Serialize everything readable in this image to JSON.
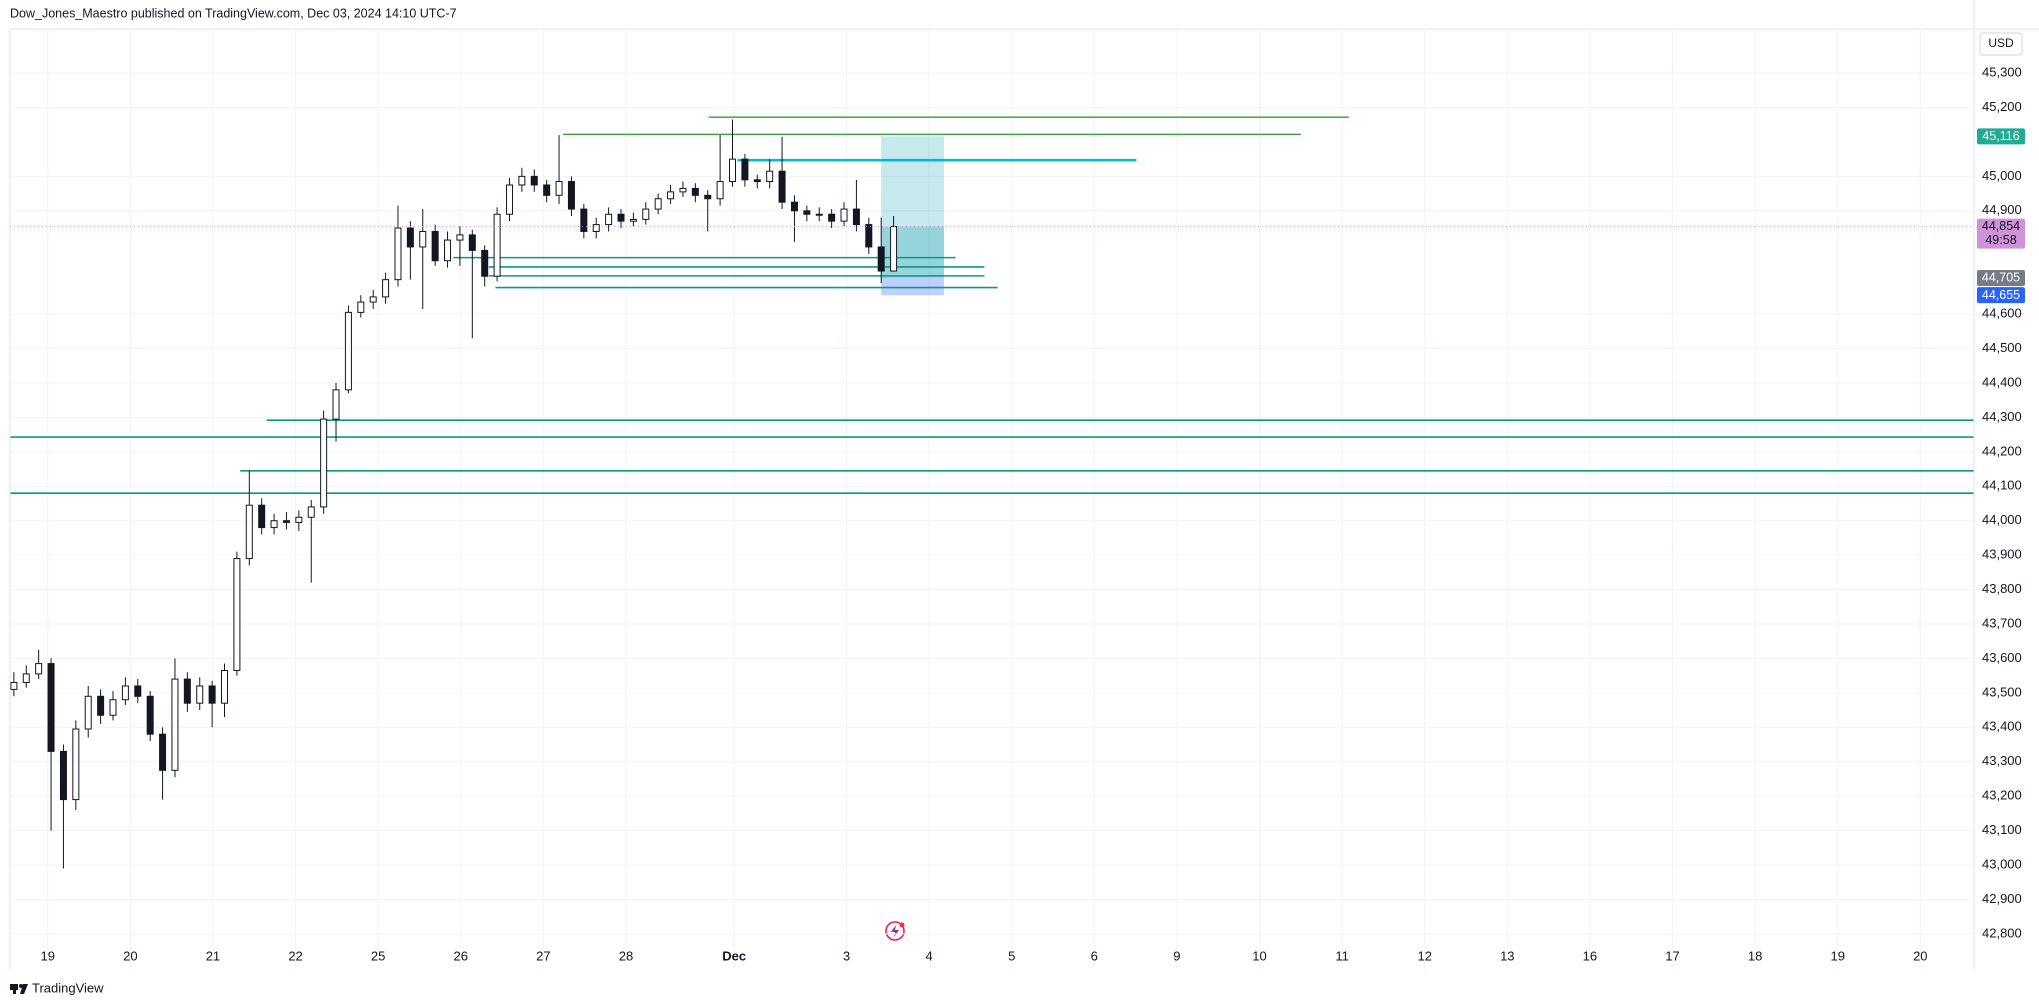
{
  "chart_data": {
    "type": "candlestick",
    "header": "Dow_Jones_Maestro published on TradingView.com, Dec 03, 2024 14:10 UTC-7",
    "currency": "USD",
    "brand": "TradingView",
    "grid": true,
    "up_color": "#ffffff",
    "down_color": "#131722",
    "x": [
      -0.41,
      -0.26,
      -0.11,
      0.04,
      0.19,
      0.34,
      0.49,
      0.64,
      0.79,
      0.94,
      1.09,
      1.24,
      1.39,
      1.54,
      1.69,
      1.84,
      1.99,
      2.14,
      2.29,
      2.44,
      2.59,
      2.74,
      2.89,
      3.04,
      3.19,
      3.34,
      3.49,
      3.64,
      3.79,
      3.94,
      4.09,
      4.24,
      4.39,
      4.54,
      4.69,
      4.84,
      4.99,
      5.14,
      5.29,
      5.44,
      5.59,
      5.74,
      5.89,
      6.04,
      6.19,
      6.34,
      6.49,
      6.64,
      6.79,
      6.94,
      7.09,
      7.24,
      7.39,
      7.54,
      7.69,
      7.84,
      7.99,
      8.14,
      8.29,
      8.44,
      8.59,
      8.74,
      8.89,
      9.04,
      9.19,
      9.34,
      9.49,
      9.64,
      9.79,
      9.94,
      10.09,
      10.24
    ],
    "open": [
      43510,
      43530,
      43555,
      43585,
      43330,
      43190,
      43395,
      43490,
      43435,
      43480,
      43520,
      43490,
      43380,
      43275,
      43540,
      43470,
      43520,
      43470,
      43565,
      43890,
      44045,
      43980,
      44000,
      43995,
      44010,
      44040,
      44295,
      44380,
      44605,
      44635,
      44650,
      44700,
      44850,
      44795,
      44840,
      44755,
      44815,
      44830,
      44785,
      44710,
      44890,
      44975,
      45000,
      44975,
      44945,
      44985,
      44905,
      44840,
      44860,
      44890,
      44870,
      44875,
      44905,
      44935,
      44955,
      44965,
      44945,
      44935,
      44985,
      45050,
      44990,
      44985,
      45015,
      44925,
      44900,
      44890,
      44890,
      44870,
      44905,
      44860,
      44795,
      44725
    ],
    "high": [
      43560,
      43580,
      43625,
      43600,
      43350,
      43420,
      43520,
      43510,
      43505,
      43545,
      43540,
      43505,
      43400,
      43600,
      43560,
      43545,
      43535,
      43585,
      43910,
      44145,
      44065,
      44020,
      44025,
      44030,
      44060,
      44320,
      44400,
      44625,
      44655,
      44670,
      44720,
      44915,
      44870,
      44905,
      44860,
      44840,
      44855,
      44845,
      44800,
      44910,
      44995,
      45025,
      45020,
      44990,
      45120,
      45000,
      44920,
      44880,
      44910,
      44905,
      44895,
      44925,
      44950,
      44975,
      44985,
      44980,
      44960,
      45120,
      45165,
      45065,
      45005,
      45050,
      45115,
      44945,
      44915,
      44910,
      44905,
      44925,
      44990,
      44880,
      44880,
      44885
    ],
    "low": [
      43490,
      43515,
      43540,
      43100,
      42990,
      43160,
      43370,
      43410,
      43420,
      43465,
      43470,
      43360,
      43190,
      43255,
      43445,
      43450,
      43400,
      43430,
      43550,
      43870,
      43960,
      43960,
      43975,
      43970,
      43820,
      44020,
      44230,
      44370,
      44590,
      44615,
      44630,
      44680,
      44700,
      44615,
      44740,
      44735,
      44740,
      44530,
      44680,
      44695,
      44870,
      44955,
      44955,
      44925,
      44920,
      44885,
      44820,
      44820,
      44840,
      44850,
      44855,
      44860,
      44890,
      44920,
      44940,
      44925,
      44840,
      44915,
      44970,
      44970,
      44965,
      44965,
      44905,
      44810,
      44870,
      44870,
      44850,
      44855,
      44840,
      44775,
      44690,
      44745
    ],
    "close": [
      43530,
      43555,
      43585,
      43330,
      43190,
      43395,
      43490,
      43435,
      43480,
      43520,
      43490,
      43380,
      43275,
      43540,
      43470,
      43520,
      43470,
      43565,
      43890,
      44045,
      43980,
      44000,
      43995,
      44010,
      44040,
      44295,
      44380,
      44605,
      44635,
      44650,
      44700,
      44850,
      44795,
      44840,
      44755,
      44815,
      44830,
      44785,
      44710,
      44890,
      44975,
      45000,
      44975,
      44945,
      44985,
      44905,
      44840,
      44860,
      44890,
      44870,
      44875,
      44905,
      44935,
      44955,
      44965,
      44945,
      44935,
      44985,
      45050,
      44990,
      44985,
      45015,
      44925,
      44900,
      44890,
      44890,
      44870,
      44905,
      44860,
      44795,
      44725,
      44854
    ],
    "xlim": [
      -0.457,
      23.32
    ],
    "xticks": [
      {
        "value": 0,
        "label": "19"
      },
      {
        "value": 1,
        "label": "20"
      },
      {
        "value": 2,
        "label": "21"
      },
      {
        "value": 3,
        "label": "22"
      },
      {
        "value": 4,
        "label": "25"
      },
      {
        "value": 5,
        "label": "26"
      },
      {
        "value": 6,
        "label": "27"
      },
      {
        "value": 7,
        "label": "28"
      },
      {
        "value": 8.31,
        "label": "Dec"
      },
      {
        "value": 9.67,
        "label": "3"
      },
      {
        "value": 10.67,
        "label": "4"
      },
      {
        "value": 11.67,
        "label": "5"
      },
      {
        "value": 12.67,
        "label": "6"
      },
      {
        "value": 13.67,
        "label": "9"
      },
      {
        "value": 14.67,
        "label": "10"
      },
      {
        "value": 15.67,
        "label": "11"
      },
      {
        "value": 16.67,
        "label": "12"
      },
      {
        "value": 17.67,
        "label": "13"
      },
      {
        "value": 18.67,
        "label": "16"
      },
      {
        "value": 19.67,
        "label": "17"
      },
      {
        "value": 20.67,
        "label": "18"
      },
      {
        "value": 21.67,
        "label": "19"
      },
      {
        "value": 22.67,
        "label": "20"
      }
    ],
    "ylim": [
      42698,
      45428
    ],
    "yticks": [
      {
        "value": 45300,
        "label": "45,300"
      },
      {
        "value": 45200,
        "label": "45,200"
      },
      {
        "value": 45000,
        "label": "45,000"
      },
      {
        "value": 44900,
        "label": "44,900"
      },
      {
        "value": 44600,
        "label": "44,600"
      },
      {
        "value": 44500,
        "label": "44,500"
      },
      {
        "value": 44400,
        "label": "44,400"
      },
      {
        "value": 44300,
        "label": "44,300"
      },
      {
        "value": 44200,
        "label": "44,200"
      },
      {
        "value": 44100,
        "label": "44,100"
      },
      {
        "value": 44000,
        "label": "44,000"
      },
      {
        "value": 43900,
        "label": "43,900"
      },
      {
        "value": 43800,
        "label": "43,800"
      },
      {
        "value": 43700,
        "label": "43,700"
      },
      {
        "value": 43600,
        "label": "43,600"
      },
      {
        "value": 43500,
        "label": "43,500"
      },
      {
        "value": 43400,
        "label": "43,400"
      },
      {
        "value": 43300,
        "label": "43,300"
      },
      {
        "value": 43200,
        "label": "43,200"
      },
      {
        "value": 43100,
        "label": "43,100"
      },
      {
        "value": 43000,
        "label": "43,000"
      },
      {
        "value": 42900,
        "label": "42,900"
      },
      {
        "value": 42800,
        "label": "42,800"
      }
    ],
    "lines": [
      {
        "y": 45172,
        "x0": 8.0,
        "x1": 15.75,
        "color": "#4caf50"
      },
      {
        "y": 45122,
        "x0": 6.24,
        "x1": 15.17,
        "color": "#43a047"
      },
      {
        "y": 45047,
        "x0": 8.35,
        "x1": 13.18,
        "color": "#00bcd4"
      },
      {
        "y": 44764,
        "x0": 4.91,
        "x1": 10.99,
        "color": "#089981"
      },
      {
        "y": 44737,
        "x0": 5.34,
        "x1": 11.34,
        "color": "#089981"
      },
      {
        "y": 44711,
        "x0": 5.34,
        "x1": 11.34,
        "color": "#089981"
      },
      {
        "y": 44677,
        "x0": 5.42,
        "x1": 11.5,
        "color": "#089981"
      },
      {
        "y": 44292,
        "x0": 2.65,
        "x1": 23.32,
        "color": "#089981"
      },
      {
        "y": 44243,
        "x0": -0.457,
        "x1": 23.32,
        "color": "#089981"
      },
      {
        "y": 44145,
        "x0": 2.33,
        "x1": 23.32,
        "color": "#089981"
      },
      {
        "y": 44080,
        "x0": -0.457,
        "x1": 23.32,
        "color": "#089981"
      }
    ],
    "position": {
      "x0": 10.09,
      "x1": 10.85,
      "target": {
        "value": 45116,
        "label": "45,116",
        "color": "#22ab94"
      },
      "entry": {
        "value": 44705,
        "label": "44,705",
        "color": "#787b86"
      },
      "stop": {
        "value": 44655,
        "label": "44,655",
        "color": "#2962ff"
      }
    },
    "last": {
      "value": 44854,
      "label": "44,854",
      "countdown": "49:58",
      "color": "#ce93d8"
    }
  }
}
